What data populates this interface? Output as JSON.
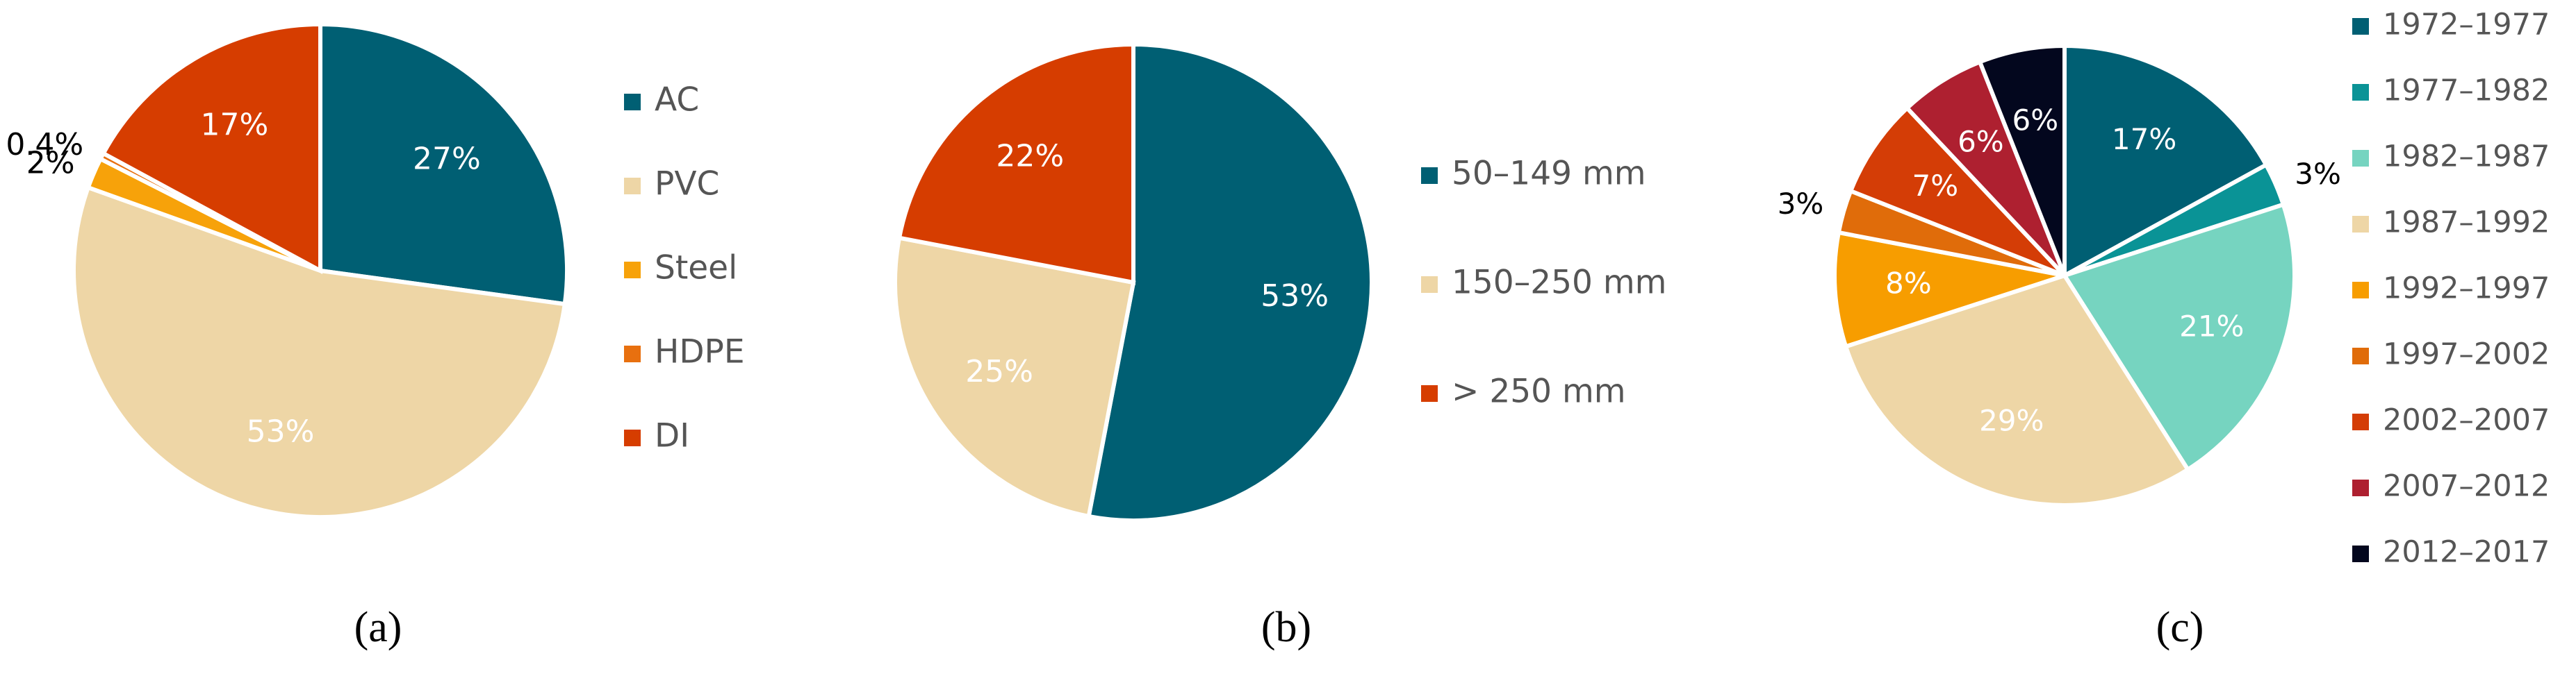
{
  "chart_data": [
    {
      "type": "pie",
      "caption": "(a)",
      "categories": [
        "AC",
        "PVC",
        "Steel",
        "HDPE",
        "DI"
      ],
      "values": [
        27,
        53,
        2,
        0.4,
        17
      ],
      "value_labels": [
        "27%",
        "53%",
        "2%",
        "0.4%",
        "17%"
      ],
      "colors": [
        "#005f73",
        "#eed6a6",
        "#f7a20a",
        "#e8700f",
        "#d63d00"
      ]
    },
    {
      "type": "pie",
      "caption": "(b)",
      "categories": [
        "50–149 mm",
        "150–250 mm",
        "> 250 mm"
      ],
      "values": [
        53,
        25,
        22
      ],
      "value_labels": [
        "53%",
        "25%",
        "22%"
      ],
      "colors": [
        "#005f73",
        "#eed6a6",
        "#d63d00"
      ]
    },
    {
      "type": "pie",
      "caption": "(c)",
      "categories": [
        "1972–1977",
        "1977–1982",
        "1982–1987",
        "1987–1992",
        "1992–1997",
        "1997–2002",
        "2002–2007",
        "2007–2012",
        "2012–2017"
      ],
      "values": [
        17,
        3,
        21,
        29,
        8,
        3,
        7,
        6,
        6
      ],
      "value_labels": [
        "17%",
        "3%",
        "21%",
        "29%",
        "8%",
        "3%",
        "7%",
        "6%",
        "6%"
      ],
      "colors": [
        "#005f73",
        "#0a9396",
        "#76d4c0",
        "#eed6a6",
        "#f79d00",
        "#e06c0a",
        "#d43d06",
        "#ae2030",
        "#03071e"
      ]
    }
  ]
}
